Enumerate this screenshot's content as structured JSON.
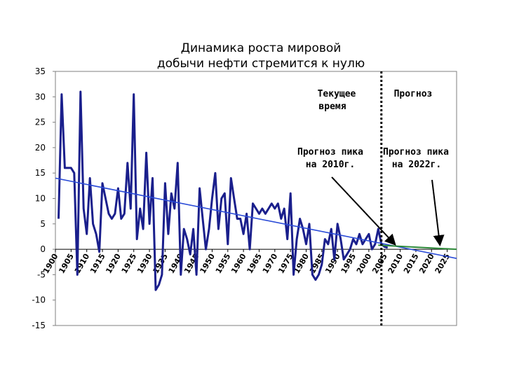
{
  "chart_data": {
    "type": "line",
    "title": [
      "Динамика роста мировой",
      "добычи нефти стремится к нулю"
    ],
    "ylim": [
      -15,
      35
    ],
    "yticks": [
      -15,
      -10,
      -5,
      0,
      5,
      10,
      15,
      20,
      25,
      30,
      35
    ],
    "xlim": [
      1900,
      2028
    ],
    "xticks": [
      1900,
      1905,
      1910,
      1915,
      1920,
      1925,
      1930,
      1935,
      1940,
      1945,
      1950,
      1955,
      1960,
      1965,
      1970,
      1975,
      1980,
      1985,
      1990,
      1995,
      2000,
      2005,
      2010,
      2015,
      2020,
      2025
    ],
    "grid": false,
    "series": [
      {
        "name": "",
        "color": "#1a1f8c",
        "x": [
          1901,
          1902,
          1903,
          1904,
          1905,
          1906,
          1907,
          1908,
          1909,
          1910,
          1911,
          1912,
          1913,
          1914,
          1915,
          1916,
          1917,
          1918,
          1919,
          1920,
          1921,
          1922,
          1923,
          1924,
          1925,
          1926,
          1927,
          1928,
          1929,
          1930,
          1931,
          1932,
          1933,
          1934,
          1935,
          1936,
          1937,
          1938,
          1939,
          1940,
          1941,
          1942,
          1943,
          1944,
          1945,
          1946,
          1947,
          1948,
          1949,
          1950,
          1951,
          1952,
          1953,
          1954,
          1955,
          1956,
          1957,
          1958,
          1959,
          1960,
          1961,
          1962,
          1963,
          1964,
          1965,
          1966,
          1967,
          1968,
          1969,
          1970,
          1971,
          1972,
          1973,
          1974,
          1975,
          1976,
          1977,
          1978,
          1979,
          1980,
          1981,
          1982,
          1983,
          1984,
          1985,
          1986,
          1987,
          1988,
          1989,
          1990,
          1991,
          1992,
          1993,
          1994,
          1995,
          1996,
          1997,
          1998,
          1999,
          2000,
          2001,
          2002,
          2003,
          2004,
          2005,
          2006
        ],
        "y": [
          6,
          30.5,
          16,
          16,
          16,
          15,
          -5,
          31,
          8,
          3,
          14,
          5,
          3,
          -0.5,
          13,
          10,
          7,
          6,
          7,
          12,
          6,
          7,
          17,
          8,
          30.5,
          2,
          8,
          4,
          19,
          5,
          14,
          -8,
          -7,
          -5,
          13,
          3,
          11,
          8,
          17,
          -5,
          4,
          2,
          -1,
          4,
          -5,
          12,
          6,
          0,
          4,
          10,
          15,
          4,
          10,
          11,
          1,
          14,
          10,
          6,
          6,
          3,
          7,
          0,
          9,
          8,
          7,
          8,
          7,
          8,
          9,
          8,
          9,
          6,
          8,
          2,
          11,
          -5,
          2,
          6,
          4,
          1,
          5,
          -5,
          -6,
          -5,
          -3,
          2,
          1,
          4,
          -2,
          5,
          2,
          -2,
          -1,
          0,
          2,
          1,
          3,
          1,
          2,
          3,
          0,
          1,
          4,
          1,
          0.5,
          0.3
        ]
      },
      {
        "name": "",
        "color": "#2a4bd7",
        "x": [
          1900,
          2028
        ],
        "y": [
          14,
          -1.8
        ]
      },
      {
        "name": "",
        "color": "#2e8b3a",
        "x": [
          2003,
          2028
        ],
        "y": [
          0.8,
          0
        ]
      }
    ],
    "vline": {
      "x": 2004,
      "style": "dotted"
    },
    "annotations": [
      {
        "lines": [
          "Текущее",
          "время"
        ]
      },
      {
        "lines": [
          "Прогноз"
        ]
      },
      {
        "lines": [
          "Прогноз пика",
          "на 2010г."
        ]
      },
      {
        "lines": [
          "Прогноз пика",
          "на 2022г."
        ]
      }
    ]
  }
}
